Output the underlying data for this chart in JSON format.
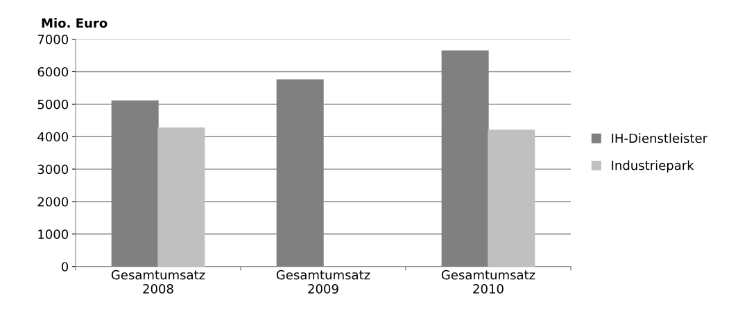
{
  "chart_data": {
    "type": "bar",
    "ylabel": "Mio. Euro",
    "categories": [
      "Gesamtumsatz\n2008",
      "Gesamtumsatz\n2009",
      "Gesamtumsatz\n2010"
    ],
    "series": [
      {
        "name": "IH-Dienstleister",
        "color": "#808080",
        "values": [
          5100,
          5750,
          6640
        ]
      },
      {
        "name": "Industriepark",
        "color": "#c0c0c0",
        "values": [
          4270,
          null,
          4200
        ]
      }
    ],
    "ylim": [
      0,
      7000
    ],
    "yticks": [
      0,
      1000,
      2000,
      3000,
      4000,
      5000,
      6000,
      7000
    ],
    "grid": "y",
    "legend": "right"
  }
}
